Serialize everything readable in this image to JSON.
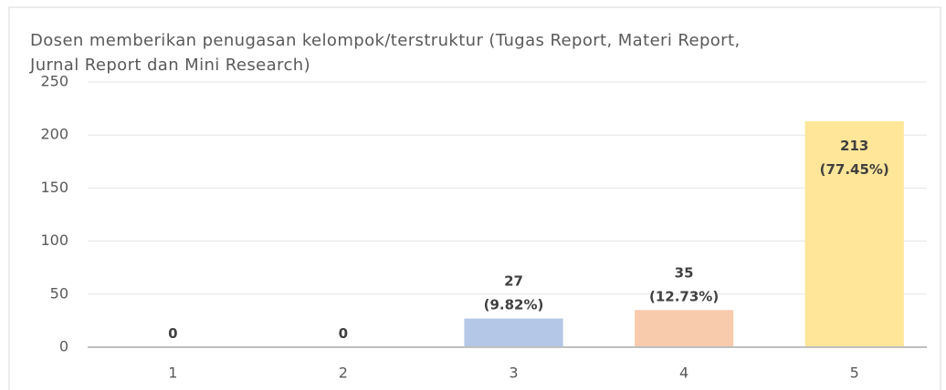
{
  "chart_data": {
    "type": "bar",
    "title": "Dosen memberikan penugasan kelompok/terstruktur (Tugas Report, Materi Report, Jurnal Report dan Mini Research)",
    "categories": [
      "1",
      "2",
      "3",
      "4",
      "5"
    ],
    "values": [
      0,
      0,
      27,
      35,
      213
    ],
    "value_labels": [
      "0",
      "0",
      "27 (9.82%)",
      "35 (12.73%)",
      "213 (77.45%)"
    ],
    "colors": [
      "#b4c7e7",
      "#b4c7e7",
      "#b4c7e7",
      "#f8cbad",
      "#ffe699"
    ],
    "ylim": [
      0,
      250
    ],
    "yticks": [
      0,
      50,
      100,
      150,
      200,
      250
    ],
    "grid": true
  }
}
